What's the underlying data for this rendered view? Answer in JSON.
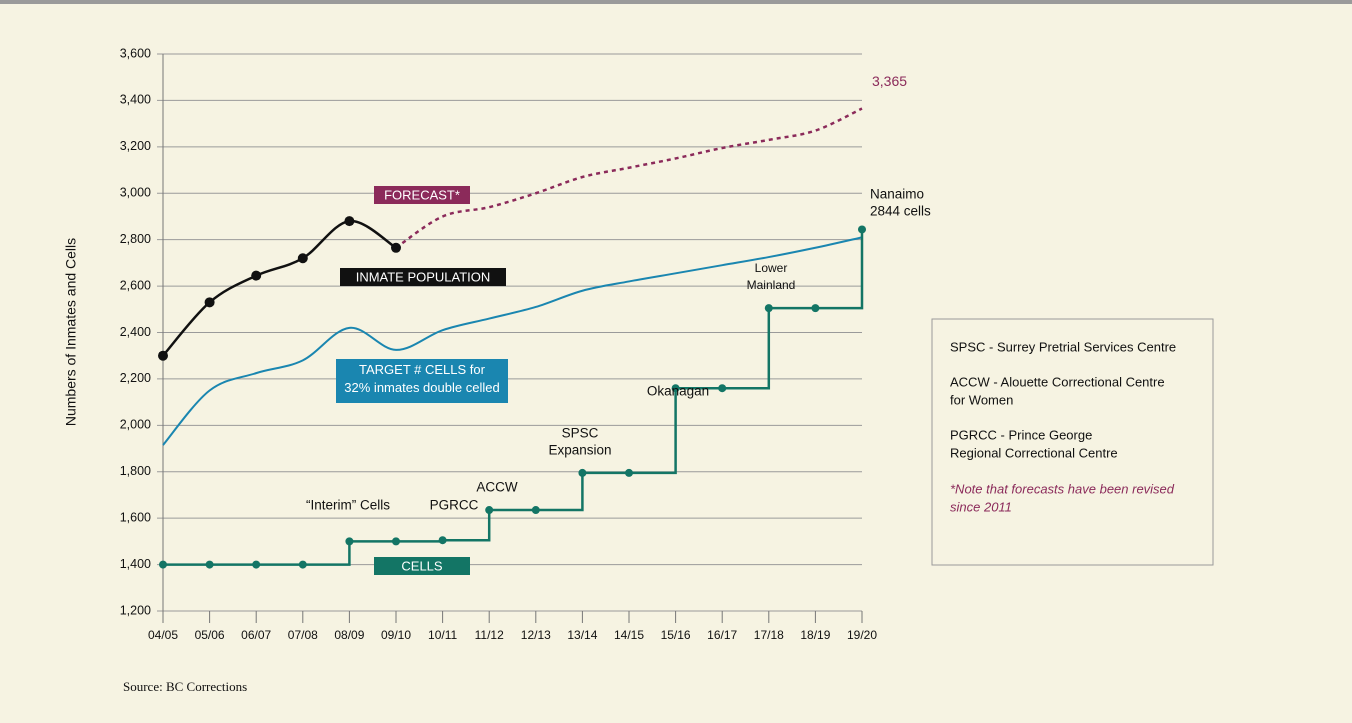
{
  "chart_data": {
    "type": "line",
    "y_label": "Numbers of Inmates and Cells",
    "source": "Source: BC Corrections",
    "categories": [
      "04/05",
      "05/06",
      "06/07",
      "07/08",
      "08/09",
      "09/10",
      "10/11",
      "11/12",
      "12/13",
      "13/14",
      "14/15",
      "15/16",
      "16/17",
      "17/18",
      "18/19",
      "19/20"
    ],
    "ylim": [
      1200,
      3600
    ],
    "yticks": [
      {
        "value": 1200,
        "label": "1,200"
      },
      {
        "value": 1400,
        "label": "1,400"
      },
      {
        "value": 1600,
        "label": "1,600"
      },
      {
        "value": 1800,
        "label": "1,800"
      },
      {
        "value": 2000,
        "label": "2,000"
      },
      {
        "value": 2200,
        "label": "2,200"
      },
      {
        "value": 2400,
        "label": "2,400"
      },
      {
        "value": 2600,
        "label": "2,600"
      },
      {
        "value": 2800,
        "label": "2,800"
      },
      {
        "value": 3000,
        "label": "3,000"
      },
      {
        "value": 3200,
        "label": "3,200"
      },
      {
        "value": 3400,
        "label": "3,400"
      },
      {
        "value": 3600,
        "label": "3,600"
      }
    ],
    "grid": true,
    "series": [
      {
        "name": "INMATE POPULATION",
        "color": "#111111",
        "values": [
          2300,
          2530,
          2645,
          2720,
          2880,
          2765,
          null,
          null,
          null,
          null,
          null,
          null,
          null,
          null,
          null,
          null
        ]
      },
      {
        "name": "FORECAST*",
        "color": "#8b2a5a",
        "values": [
          null,
          null,
          null,
          null,
          null,
          2765,
          2900,
          2940,
          3000,
          3070,
          3110,
          3150,
          3195,
          3230,
          3270,
          3365
        ],
        "value_labels": [
          null,
          null,
          null,
          null,
          null,
          null,
          null,
          null,
          null,
          null,
          null,
          null,
          null,
          null,
          null,
          "3,365"
        ]
      },
      {
        "name": "TARGET # CELLS for 32% inmates double celled",
        "color": "#1a86b0",
        "values": [
          1915,
          2150,
          2225,
          2280,
          2420,
          2325,
          2410,
          2460,
          2510,
          2580,
          2620,
          2655,
          2690,
          2725,
          2765,
          2810
        ]
      },
      {
        "name": "CELLS",
        "color": "#137565",
        "values": [
          1400,
          1400,
          1400,
          1400,
          1500,
          1500,
          1505,
          1635,
          1635,
          1795,
          1795,
          2160,
          2160,
          2505,
          2505,
          2844
        ]
      }
    ],
    "annotations": [
      [
        "“Interim” Cells"
      ],
      [
        "PGRCC"
      ],
      [
        "ACCW"
      ],
      [
        "SPSC",
        "Expansion"
      ],
      [
        "Okanagan"
      ],
      [
        "Lower",
        "Mainland"
      ],
      [
        "Nanaimo",
        "2844 cells"
      ]
    ],
    "legend_notes": [
      "SPSC - Surrey Pretrial Services Centre",
      "ACCW - Alouette Correctional Centre",
      "for Women",
      "PGRCC - Prince George",
      "Regional Correctional Centre"
    ],
    "note": [
      "*Note that forecasts have been revised",
      "since 2011"
    ]
  }
}
